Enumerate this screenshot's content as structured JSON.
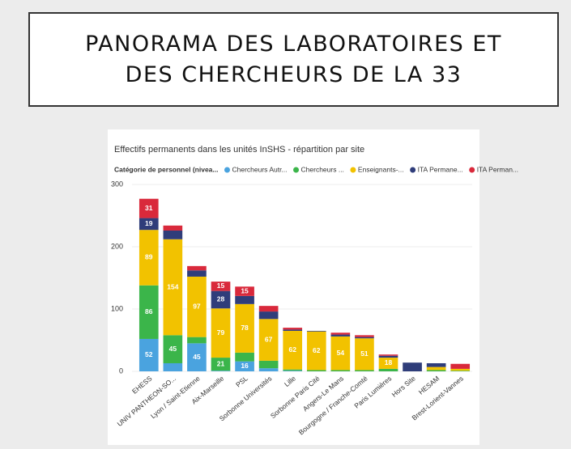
{
  "slide_title": "PANORAMA DES LABORATOIRES ET DES CHERCHEURS DE LA 33",
  "chart_data": {
    "type": "stacked_bar",
    "title": "Effectifs permanents dans les unités InSHS - répartition par site",
    "legend_title": "Catégorie de personnel (nivea...",
    "categories": [
      "EHESS",
      "UNIV PANTHEON-SO...",
      "Lyon / Saint-Etienne",
      "Aix-Marseille",
      "PSL",
      "Sorbonne Universités",
      "Lille",
      "Sorbonne Paris Cité",
      "Angers-Le Mans",
      "Bourgogne / Franche-Comté",
      "Paris Lumières",
      "Hors Site",
      "HESAM",
      "Brest-Lorient-Vannes"
    ],
    "series": [
      {
        "name": "Chercheurs Autr...",
        "color": "#4aa3df",
        "values": [
          52,
          13,
          45,
          1,
          16,
          5,
          1,
          0,
          0,
          0,
          0,
          0,
          0,
          0
        ]
      },
      {
        "name": "Chercheurs ...",
        "color": "#3bb54a",
        "values": [
          86,
          45,
          10,
          21,
          14,
          12,
          2,
          2,
          2,
          2,
          4,
          0,
          2,
          1
        ]
      },
      {
        "name": "Enseignants-...",
        "color": "#f2c200",
        "values": [
          89,
          154,
          97,
          79,
          78,
          67,
          62,
          62,
          54,
          51,
          18,
          0,
          5,
          3
        ]
      },
      {
        "name": "ITA Permane...",
        "color": "#2f3d7a",
        "values": [
          19,
          14,
          10,
          28,
          13,
          12,
          2,
          1,
          3,
          2,
          3,
          14,
          6,
          0
        ]
      },
      {
        "name": "ITA Perman...",
        "color": "#d9293b",
        "values": [
          31,
          8,
          7,
          15,
          15,
          9,
          3,
          0,
          3,
          3,
          2,
          0,
          0,
          8
        ]
      }
    ],
    "ylim": [
      0,
      300
    ],
    "yticks": [
      0,
      100,
      200,
      300
    ],
    "grid": true
  }
}
